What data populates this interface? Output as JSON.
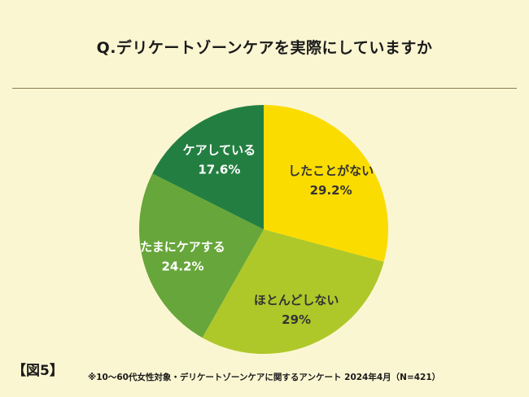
{
  "title": "Q.デリケートゾーンケアを実際にしていますか",
  "figure_label": "【図5】",
  "footnote": "※10～60代女性対象・デリケートゾーンケアに関するアンケート 2024年4月（N=421）",
  "chart_data": {
    "type": "pie",
    "title": "Q.デリケートゾーンケアを実際にしていますか",
    "slices": [
      {
        "label": "したことがない",
        "value": 29.2,
        "value_label": "29.2%",
        "color": "#fbdc00",
        "text_color": "#333333"
      },
      {
        "label": "ほとんどしない",
        "value": 29,
        "value_label": "29%",
        "color": "#aec829",
        "text_color": "#333333"
      },
      {
        "label": "たまにケアする",
        "value": 24.2,
        "value_label": "24.2%",
        "color": "#67a63a",
        "text_color": "#ffffff"
      },
      {
        "label": "ケアしている",
        "value": 17.6,
        "value_label": "17.6%",
        "color": "#237f41",
        "text_color": "#ffffff"
      }
    ],
    "start": "12 o'clock",
    "direction": "clockwise",
    "legend": "none"
  }
}
